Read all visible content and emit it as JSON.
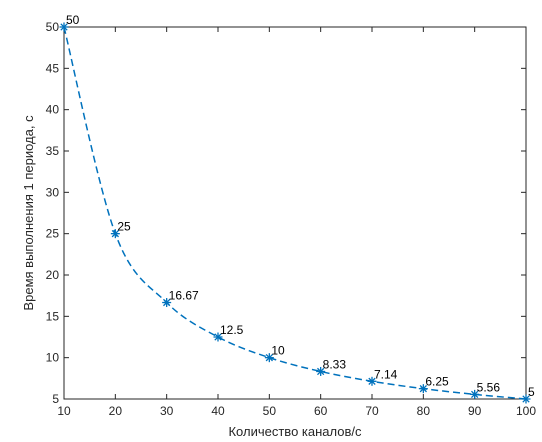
{
  "chart_data": {
    "type": "line",
    "x": [
      10,
      20,
      30,
      40,
      50,
      60,
      70,
      80,
      90,
      100
    ],
    "series": [
      {
        "values": [
          50,
          25,
          16.67,
          12.5,
          10,
          8.33,
          7.14,
          6.25,
          5.56,
          5
        ],
        "labels": [
          "50",
          "25",
          "16.67",
          "12.5",
          "10",
          "8.33",
          "7.14",
          "6.25",
          "5.56",
          "5"
        ],
        "color": "#0072bd",
        "line_style": "dashed",
        "marker": "asterisk"
      }
    ],
    "xlabel": "Количество каналов/с",
    "ylabel": "Время выполнения 1 периода, с",
    "xlim": [
      10,
      100
    ],
    "ylim": [
      5,
      50
    ],
    "xticks": [
      10,
      20,
      30,
      40,
      50,
      60,
      70,
      80,
      90,
      100
    ],
    "yticks": [
      5,
      10,
      15,
      20,
      25,
      30,
      35,
      40,
      45,
      50
    ],
    "grid": false,
    "box": true
  }
}
